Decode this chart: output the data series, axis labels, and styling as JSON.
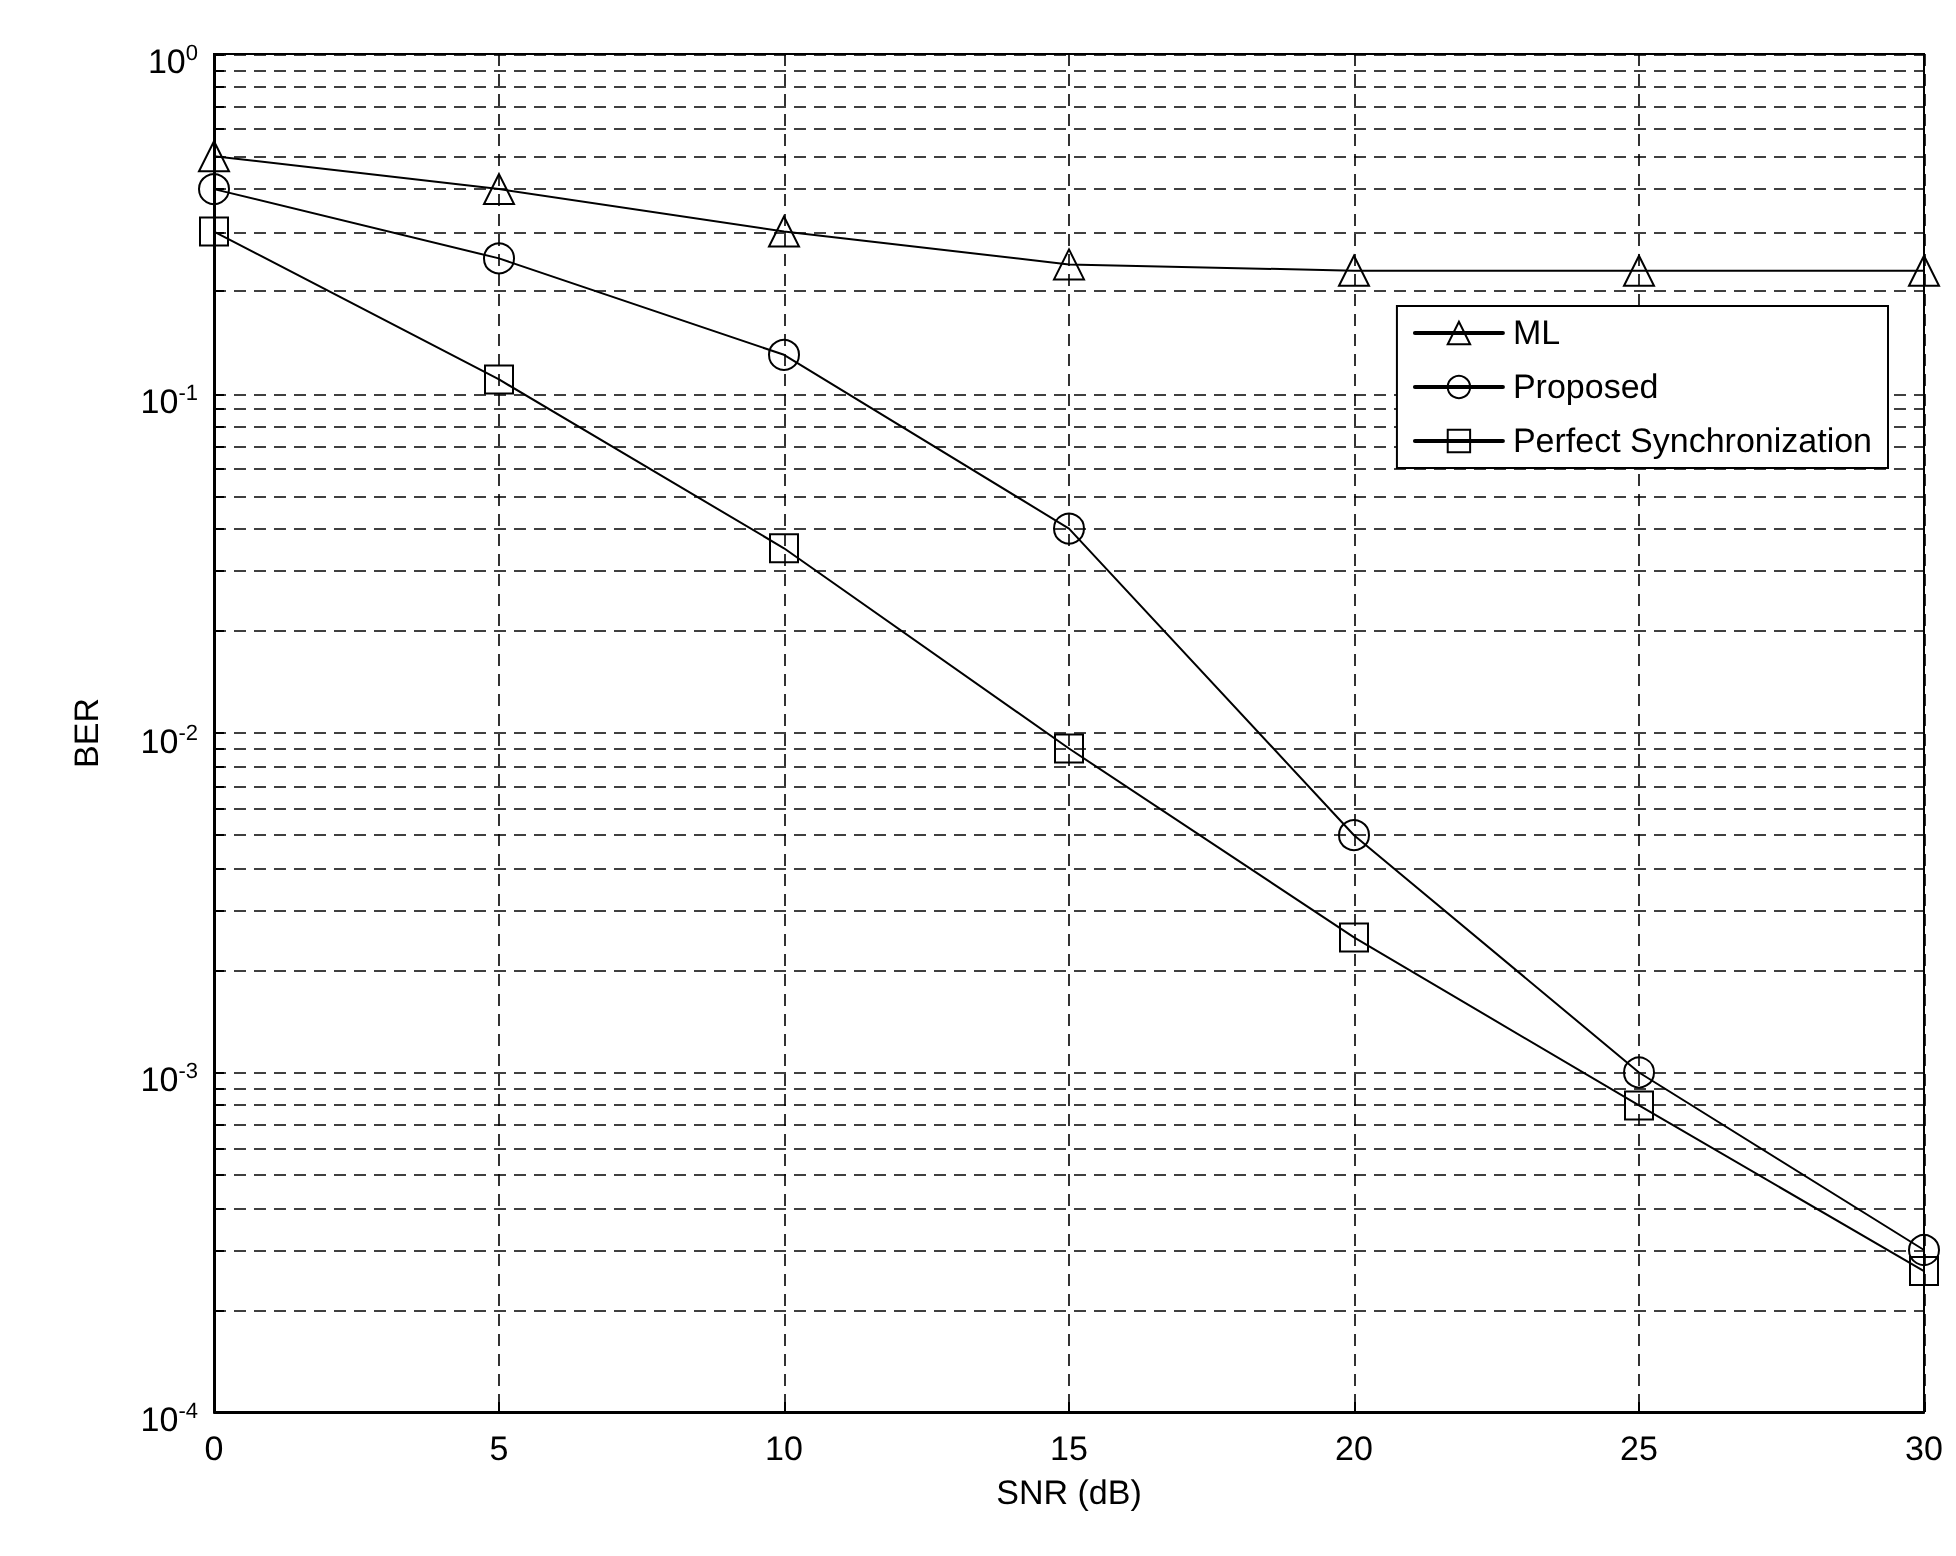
{
  "chart_data": {
    "type": "line",
    "xlabel": "SNR (dB)",
    "ylabel": "BER",
    "log": "y",
    "grid": true,
    "legend": "top right",
    "line_style": "solid",
    "xlim": [
      0,
      30
    ],
    "xticks": [
      0,
      5,
      10,
      15,
      20,
      25,
      30
    ],
    "ylim": [
      0.0001,
      1
    ],
    "yticks": [
      {
        "value": 0.0001,
        "label": "10$^{-4}$"
      },
      {
        "value": 0.0002,
        "label": null
      },
      {
        "value": 0.0003,
        "label": null
      },
      {
        "value": 0.0004,
        "label": null
      },
      {
        "value": 0.0005,
        "label": null
      },
      {
        "value": 0.0006,
        "label": null
      },
      {
        "value": 0.0007,
        "label": null
      },
      {
        "value": 0.0008,
        "label": null
      },
      {
        "value": 0.0009,
        "label": null
      },
      {
        "value": 0.001,
        "label": "10$^{-3}$"
      },
      {
        "value": 0.002,
        "label": null
      },
      {
        "value": 0.003,
        "label": null
      },
      {
        "value": 0.004,
        "label": null
      },
      {
        "value": 0.005,
        "label": null
      },
      {
        "value": 0.006,
        "label": null
      },
      {
        "value": 0.007,
        "label": null
      },
      {
        "value": 0.008,
        "label": null
      },
      {
        "value": 0.009,
        "label": null
      },
      {
        "value": 0.01,
        "label": "10$^{-2}$"
      },
      {
        "value": 0.02,
        "label": null
      },
      {
        "value": 0.03,
        "label": null
      },
      {
        "value": 0.04,
        "label": null
      },
      {
        "value": 0.05,
        "label": null
      },
      {
        "value": 0.06,
        "label": null
      },
      {
        "value": 0.07,
        "label": null
      },
      {
        "value": 0.08,
        "label": null
      },
      {
        "value": 0.09,
        "label": null
      },
      {
        "value": 0.1,
        "label": "10$^{-1}$"
      },
      {
        "value": 0.2,
        "label": null
      },
      {
        "value": 0.3,
        "label": null
      },
      {
        "value": 0.4,
        "label": null
      },
      {
        "value": 0.5,
        "label": null
      },
      {
        "value": 0.6,
        "label": null
      },
      {
        "value": 0.7,
        "label": null
      },
      {
        "value": 0.8,
        "label": null
      },
      {
        "value": 0.9,
        "label": null
      },
      {
        "value": 1,
        "label": "10$^{0}$"
      }
    ],
    "x": [
      0,
      5,
      10,
      15,
      20,
      25,
      30
    ],
    "series": [
      {
        "name": "ML",
        "color": "#000000",
        "marker": "triangle",
        "values": [
          0.5,
          0.4,
          0.3,
          0.24,
          0.23,
          0.23,
          0.23
        ]
      },
      {
        "name": "Proposed",
        "color": "#000000",
        "marker": "circle",
        "values": [
          0.4,
          0.25,
          0.13,
          0.04,
          0.005,
          0.001,
          0.0003
        ]
      },
      {
        "name": "Perfect Synchronization",
        "color": "#000000",
        "marker": "square",
        "values": [
          0.3,
          0.11,
          0.035,
          0.009,
          0.0025,
          0.0008,
          0.00026
        ]
      }
    ]
  }
}
